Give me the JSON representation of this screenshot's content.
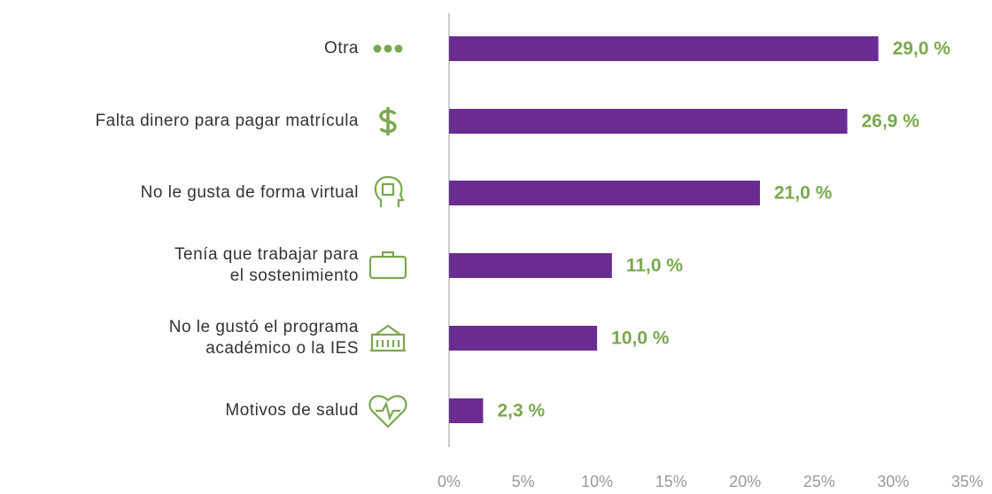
{
  "chart_data": {
    "type": "bar",
    "orientation": "horizontal",
    "categories": [
      "Otra",
      "Falta dinero para pagar matrícula",
      "No le gusta de forma virtual",
      "Tenía que trabajar para\nel sostenimiento",
      "No le gustó el programa\nacadémico o la IES",
      "Motivos de salud"
    ],
    "values": [
      29.0,
      26.9,
      21.0,
      11.0,
      10.0,
      2.3
    ],
    "value_labels": [
      "29,0 %",
      "26,9 %",
      "21,0 %",
      "11,0 %",
      "10,0 %",
      "2,3 %"
    ],
    "color": "#6a2c91",
    "label_color": "#7aa84f",
    "xlim": [
      0,
      35
    ],
    "xticks": [
      {
        "value": 0,
        "label": "0%"
      },
      {
        "value": 5,
        "label": "5%"
      },
      {
        "value": 10,
        "label": "10%"
      },
      {
        "value": 15,
        "label": "15%"
      },
      {
        "value": 20,
        "label": "20%"
      },
      {
        "value": 25,
        "label": "25%"
      },
      {
        "value": 30,
        "label": "30%"
      },
      {
        "value": 35,
        "label": "35%"
      }
    ]
  }
}
